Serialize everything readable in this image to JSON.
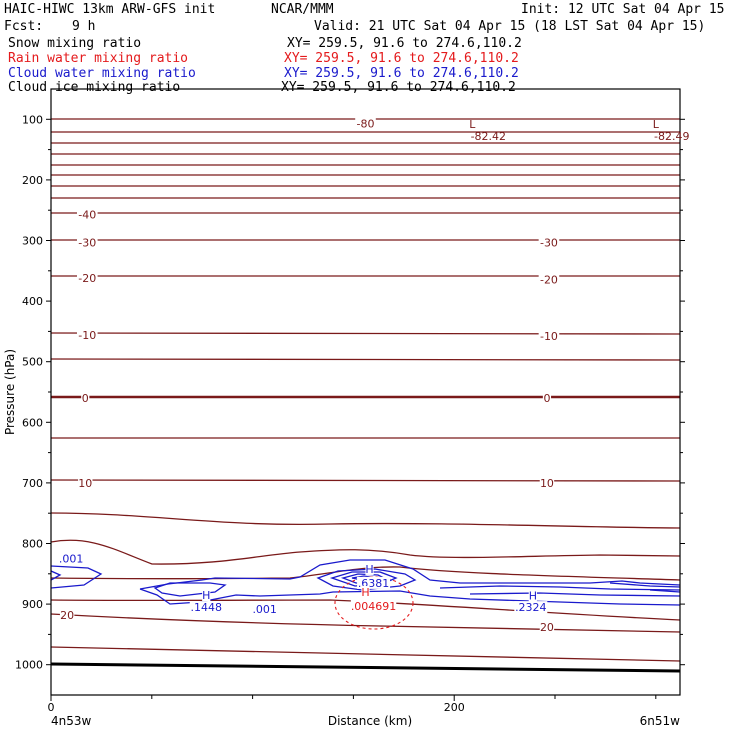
{
  "header": {
    "model_title": "HAIC-HIWC 13km ARW-GFS init",
    "org": "NCAR/MMM",
    "init": "Init: 12 UTC Sat 04 Apr 15",
    "fcst_label": "Fcst:",
    "fcst_value": "9 h",
    "valid": "Valid: 21 UTC Sat 04 Apr 15 (18 LST Sat 04 Apr 15)"
  },
  "fields": [
    {
      "name": "Snow mixing ratio",
      "xy": "XY= 259.5, 91.6 to 274.6,110.2",
      "color": "#000000"
    },
    {
      "name": "Rain water mixing ratio",
      "xy": "XY= 259.5, 91.6 to 274.6,110.2",
      "color": "#e41a1c"
    },
    {
      "name": "Cloud water mixing ratio",
      "xy": "XY= 259.5, 91.6 to 274.6,110.2",
      "color": "#1a1acc"
    },
    {
      "name": "Cloud ice mixing ratio",
      "xy": "XY= 259.5, 91.6 to 274.6,110.2",
      "color": "#000000"
    }
  ],
  "colors": {
    "temperature": "#7a1a1a",
    "rain": "#e41a1c",
    "cloud_water": "#1a1acc",
    "ground": "#000000"
  },
  "chart_data": {
    "type": "contour-cross-section",
    "ylabel": "Pressure (hPa)",
    "xlabel": "Distance (km)",
    "y_reversed": true,
    "ylim": [
      1050,
      50
    ],
    "xlim": [
      0,
      312
    ],
    "yticks": [
      100,
      200,
      300,
      400,
      500,
      600,
      700,
      800,
      900,
      1000
    ],
    "yminor": [
      150,
      250,
      350,
      450,
      550,
      650,
      750,
      850,
      950
    ],
    "xticks": [
      0,
      200
    ],
    "xminor": [
      50,
      100,
      150,
      250,
      300
    ],
    "x_endpoints": [
      "4n53w",
      "6n51w"
    ],
    "temperature_contour_labels": [
      {
        "text": "-80",
        "x": 156,
        "p": 107
      },
      {
        "text": "-40",
        "x": 18,
        "p": 257
      },
      {
        "text": "-30",
        "x": 18,
        "p": 303
      },
      {
        "text": "-30",
        "x": 247,
        "p": 303
      },
      {
        "text": "-20",
        "x": 18,
        "p": 362
      },
      {
        "text": "-20",
        "x": 247,
        "p": 364
      },
      {
        "text": "-10",
        "x": 18,
        "p": 456
      },
      {
        "text": "-10",
        "x": 247,
        "p": 458
      },
      {
        "text": "0",
        "x": 17,
        "p": 560
      },
      {
        "text": "0",
        "x": 246,
        "p": 560
      },
      {
        "text": "10",
        "x": 17,
        "p": 700
      },
      {
        "text": "10",
        "x": 246,
        "p": 700
      },
      {
        "text": "20",
        "x": 8,
        "p": 918
      },
      {
        "text": "20",
        "x": 246,
        "p": 938
      }
    ],
    "temperature_min_labels": [
      {
        "mark": "L",
        "value": "-82.42",
        "x": 206,
        "p": 88
      },
      {
        "mark": "L",
        "value": "-82.49",
        "x": 297,
        "p": 88
      }
    ],
    "cloud_water_labels": [
      {
        "text": ".001",
        "x": 10,
        "p": 825
      },
      {
        "text": "H",
        "x": 77,
        "p": 885
      },
      {
        "text": ".1448",
        "x": 77,
        "p": 905
      },
      {
        "text": ".001",
        "x": 106,
        "p": 908
      },
      {
        "text": "H",
        "x": 158,
        "p": 842
      },
      {
        "text": ".6381",
        "x": 160,
        "p": 865
      },
      {
        "text": "H",
        "x": 239,
        "p": 886
      },
      {
        "text": ".2324",
        "x": 238,
        "p": 905
      }
    ],
    "rain_labels": [
      {
        "text": "H",
        "x": 156,
        "p": 880
      },
      {
        "text": ".004691",
        "x": 160,
        "p": 903
      }
    ]
  }
}
